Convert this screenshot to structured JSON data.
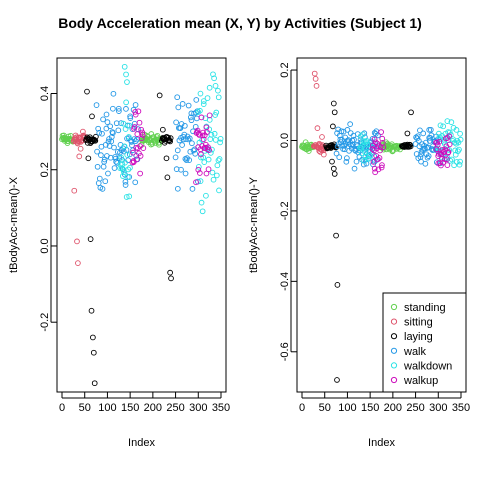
{
  "figure": {
    "title": "Body Acceleration mean (X, Y) by Activities (Subject 1)"
  },
  "legend": {
    "placement": "bottom-right of right panel",
    "entries": [
      {
        "label": "standing",
        "color": "#61D04F"
      },
      {
        "label": "sitting",
        "color": "#DF536B"
      },
      {
        "label": "laying",
        "color": "#000000"
      },
      {
        "label": "walk",
        "color": "#2297E6"
      },
      {
        "label": "walkdown",
        "color": "#28E2E5"
      },
      {
        "label": "walkup",
        "color": "#CD0BBC"
      }
    ]
  },
  "chart_data": [
    {
      "type": "scatter",
      "title": "",
      "xlabel": "Index",
      "ylabel": "tBodyAcc-mean()-X",
      "xlim": [
        0,
        350
      ],
      "ylim": [
        -0.37,
        0.48
      ],
      "xticks": [
        0,
        50,
        100,
        150,
        200,
        250,
        300,
        350
      ],
      "yticks": [
        -0.2,
        0.0,
        0.2,
        0.4
      ],
      "series": [
        {
          "name": "standing",
          "segments": [
            [
              0,
              25,
              0.279,
              0.006
            ],
            [
              175,
              218,
              0.278,
              0.007
            ]
          ],
          "points": [
            [
              4,
              0.29
            ],
            [
              12,
              0.27
            ],
            [
              19,
              0.289
            ],
            [
              182,
              0.292
            ],
            [
              196,
              0.266
            ],
            [
              210,
              0.289
            ]
          ]
        },
        {
          "name": "sitting",
          "segments": [
            [
              26,
              52,
              0.278,
              0.008
            ]
          ],
          "points": [
            [
              27,
              0.145
            ],
            [
              33,
              0.012
            ],
            [
              35,
              -0.045
            ],
            [
              38,
              0.235
            ],
            [
              41,
              0.255
            ],
            [
              30,
              0.29
            ],
            [
              46,
              0.3
            ]
          ]
        },
        {
          "name": "laying",
          "segments": [
            [
              53,
              75,
              0.278,
              0.004
            ],
            [
              220,
              240,
              0.279,
              0.004
            ]
          ],
          "points": [
            [
              55,
              0.405
            ],
            [
              63,
              0.018
            ],
            [
              65,
              -0.17
            ],
            [
              68,
              -0.24
            ],
            [
              70,
              -0.28
            ],
            [
              72,
              -0.36
            ],
            [
              66,
              0.34
            ],
            [
              58,
              0.23
            ],
            [
              215,
              0.395
            ],
            [
              222,
              0.305
            ],
            [
              238,
              -0.07
            ],
            [
              240,
              -0.085
            ],
            [
              232,
              0.18
            ],
            [
              230,
              0.23
            ]
          ]
        },
        {
          "name": "walk",
          "segments": [
            [
              76,
              168,
              0.265,
              0.05
            ],
            [
              250,
              300,
              0.27,
              0.05
            ]
          ],
          "points": [
            [
              98,
              0.345
            ],
            [
              112,
              0.36
            ],
            [
              125,
              0.36
            ],
            [
              140,
              0.16
            ],
            [
              150,
              0.34
            ],
            [
              162,
              0.37
            ],
            [
              255,
              0.15
            ],
            [
              262,
              0.2
            ],
            [
              272,
              0.19
            ],
            [
              285,
              0.33
            ],
            [
              295,
              0.35
            ]
          ]
        },
        {
          "name": "walkdown",
          "segments": [
            [
              128,
              150,
              0.28,
              0.09
            ],
            [
              300,
              350,
              0.29,
              0.07
            ]
          ],
          "points": [
            [
              138,
              0.47
            ],
            [
              141,
              0.45
            ],
            [
              143,
              0.43
            ],
            [
              148,
              0.13
            ],
            [
              135,
              0.2
            ],
            [
              305,
              0.17
            ],
            [
              325,
              0.415
            ],
            [
              338,
              0.42
            ],
            [
              345,
              0.39
            ],
            [
              312,
              0.38
            ]
          ]
        },
        {
          "name": "walkup",
          "segments": [
            [
              155,
              180,
              0.27,
              0.04
            ],
            [
              295,
              325,
              0.27,
              0.045
            ]
          ],
          "points": [
            [
              158,
              0.22
            ],
            [
              172,
              0.19
            ],
            [
              300,
              0.2
            ],
            [
              318,
              0.19
            ]
          ]
        }
      ]
    },
    {
      "type": "scatter",
      "title": "",
      "xlabel": "Index",
      "ylabel": "tBodyAcc-mean()-Y",
      "xlim": [
        0,
        350
      ],
      "ylim": [
        -0.7,
        0.22
      ],
      "xticks": [
        0,
        50,
        100,
        150,
        200,
        250,
        300,
        350
      ],
      "yticks": [
        -0.6,
        -0.4,
        -0.2,
        0.0,
        0.2
      ],
      "series": [
        {
          "name": "standing",
          "segments": [
            [
              0,
              25,
              -0.018,
              0.004
            ],
            [
              175,
              218,
              -0.018,
              0.005
            ]
          ],
          "points": [
            [
              8,
              -0.005
            ],
            [
              15,
              -0.03
            ],
            [
              185,
              -0.005
            ],
            [
              200,
              -0.03
            ]
          ]
        },
        {
          "name": "sitting",
          "segments": [
            [
              26,
              52,
              -0.018,
              0.006
            ]
          ],
          "points": [
            [
              28,
              0.19
            ],
            [
              30,
              0.175
            ],
            [
              32,
              0.155
            ],
            [
              34,
              0.035
            ],
            [
              38,
              -0.03
            ],
            [
              44,
              0.01
            ],
            [
              48,
              -0.04
            ]
          ]
        },
        {
          "name": "laying",
          "segments": [
            [
              53,
              75,
              -0.018,
              0.003
            ],
            [
              220,
              240,
              -0.015,
              0.003
            ]
          ],
          "points": [
            [
              70,
              0.105
            ],
            [
              72,
              0.08
            ],
            [
              68,
              0.04
            ],
            [
              66,
              -0.06
            ],
            [
              70,
              -0.08
            ],
            [
              72,
              -0.095
            ],
            [
              75,
              -0.27
            ],
            [
              78,
              -0.41
            ],
            [
              77,
              -0.68
            ],
            [
              240,
              0.08
            ],
            [
              232,
              0.02
            ]
          ]
        },
        {
          "name": "walk",
          "segments": [
            [
              76,
              168,
              -0.015,
              0.025
            ],
            [
              250,
              300,
              -0.015,
              0.025
            ]
          ],
          "points": [
            [
              100,
              0.03
            ],
            [
              120,
              -0.06
            ],
            [
              140,
              -0.055
            ],
            [
              160,
              -0.06
            ],
            [
              262,
              -0.06
            ],
            [
              280,
              0.03
            ]
          ]
        },
        {
          "name": "walkdown",
          "segments": [
            [
              128,
              150,
              -0.015,
              0.02
            ],
            [
              300,
              350,
              -0.015,
              0.03
            ]
          ],
          "points": [
            [
              305,
              -0.065
            ],
            [
              320,
              0.055
            ],
            [
              340,
              0.03
            ],
            [
              348,
              -0.06
            ]
          ]
        },
        {
          "name": "walkup",
          "segments": [
            [
              155,
              180,
              -0.03,
              0.025
            ],
            [
              295,
              325,
              -0.025,
              0.025
            ]
          ],
          "points": [
            [
              160,
              -0.08
            ],
            [
              176,
              -0.07
            ],
            [
              300,
              -0.065
            ],
            [
              320,
              -0.07
            ]
          ]
        }
      ]
    }
  ]
}
